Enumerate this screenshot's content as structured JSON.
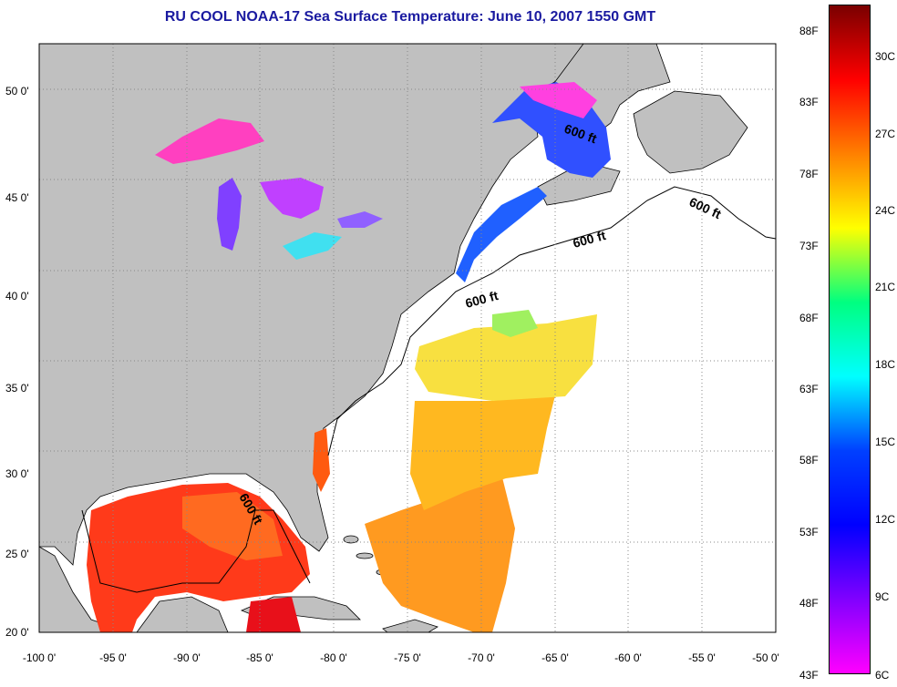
{
  "title": "RU COOL  NOAA-17  Sea Surface Temperature:  June 10, 2007 1550 GMT",
  "map": {
    "lon_range": [
      -100,
      -50
    ],
    "lat_range": [
      20,
      52.5
    ],
    "lon_ticks": [
      "-100 0'",
      "-95 0'",
      "-90 0'",
      "-85 0'",
      "-80 0'",
      "-75 0'",
      "-70 0'",
      "-65 0'",
      "-60 0'",
      "-55 0'",
      "-50 0'"
    ],
    "lat_ticks": [
      "20 0'",
      "25 0'",
      "30 0'",
      "35 0'",
      "40 0'",
      "45 0'",
      "50 0'"
    ],
    "contour_labels": [
      "600 ft",
      "600 ft",
      "600 ft",
      "600 ft",
      "600 ft"
    ],
    "colors": {
      "land": "#c0c0c0",
      "no_data": "#ffffff",
      "grid": "#888888"
    }
  },
  "colorbar": {
    "fahrenheit_labels": [
      "88F",
      "83F",
      "78F",
      "73F",
      "68F",
      "63F",
      "58F",
      "53F",
      "48F",
      "43F"
    ],
    "celsius_labels": [
      "30C",
      "27C",
      "24C",
      "21C",
      "18C",
      "15C",
      "12C",
      "9C",
      "6C"
    ],
    "gradient_colors": [
      "#7a0000",
      "#ff0000",
      "#ff8000",
      "#ffff00",
      "#00ff80",
      "#00ffff",
      "#0040ff",
      "#0000ff",
      "#8000ff",
      "#ff00ff"
    ]
  }
}
